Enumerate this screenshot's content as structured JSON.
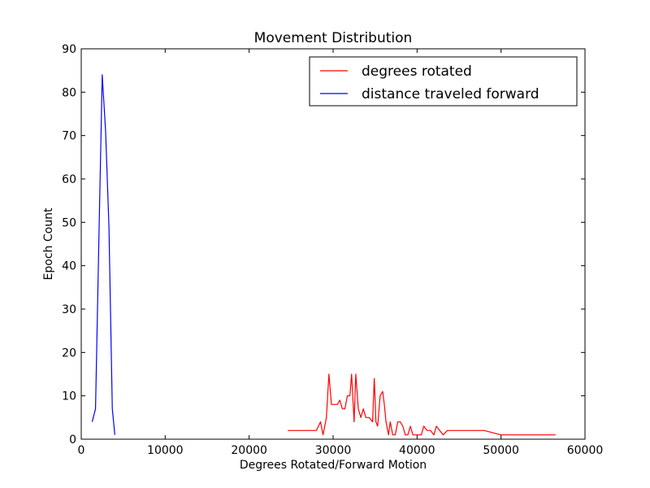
{
  "chart_data": {
    "type": "line",
    "title": "Movement Distribution",
    "xlabel": "Degrees Rotated/Forward Motion",
    "ylabel": "Epoch Count",
    "xlim": [
      0,
      60000
    ],
    "ylim": [
      0,
      90
    ],
    "xticks": [
      0,
      10000,
      20000,
      30000,
      40000,
      50000,
      60000
    ],
    "yticks": [
      0,
      10,
      20,
      30,
      40,
      50,
      60,
      70,
      80,
      90
    ],
    "grid": false,
    "legend_placement": "upper-right",
    "series": [
      {
        "name": "degrees rotated",
        "color": "#ff0000",
        "x": [
          24600,
          25500,
          26500,
          27500,
          28000,
          28500,
          28800,
          29200,
          29500,
          29800,
          30200,
          30500,
          30800,
          31100,
          31400,
          31700,
          32000,
          32200,
          32500,
          32700,
          33000,
          33300,
          33600,
          33900,
          34300,
          34700,
          34900,
          35100,
          35300,
          35600,
          35900,
          36100,
          36300,
          36600,
          36800,
          37100,
          37400,
          37700,
          38000,
          38300,
          38600,
          38900,
          39200,
          39500,
          39800,
          40200,
          40500,
          40800,
          41200,
          41600,
          42000,
          42300,
          42700,
          43100,
          43600,
          44100,
          45000,
          46500,
          48000,
          50000,
          52000,
          54000,
          56500
        ],
        "values": [
          2,
          2,
          2,
          2,
          2,
          4,
          1,
          5,
          15,
          8,
          8,
          8,
          9,
          7,
          7,
          10,
          10,
          15,
          4,
          15,
          7,
          5,
          7,
          5,
          5,
          4,
          14,
          4,
          3,
          10,
          11,
          8,
          4,
          1,
          4,
          1,
          1,
          4,
          4,
          3,
          1,
          1,
          3,
          1,
          1,
          1,
          1,
          3,
          2,
          2,
          1,
          3,
          2,
          1,
          2,
          2,
          2,
          2,
          2,
          1,
          1,
          1,
          1
        ]
      },
      {
        "name": "distance traveled forward",
        "color": "#0000ff",
        "x": [
          1300,
          1700,
          2100,
          2500,
          2900,
          3300,
          3700,
          4000
        ],
        "values": [
          4,
          7,
          46,
          84,
          71,
          49,
          7,
          1
        ]
      }
    ]
  }
}
